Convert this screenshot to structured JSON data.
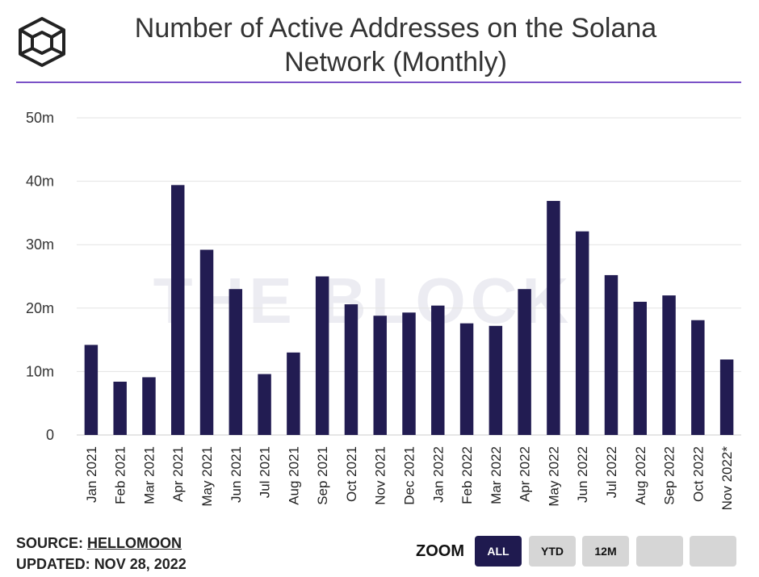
{
  "header": {
    "title_line1": "Number of Active Addresses on the Solana",
    "title_line2": "Network (Monthly)",
    "logo_icon": "the-block-cube-icon",
    "accent_color": "#7a52c7"
  },
  "chart_data": {
    "type": "bar",
    "title": "Number of Active Addresses on the Solana Network (Monthly)",
    "categories": [
      "Jan 2021",
      "Feb 2021",
      "Mar 2021",
      "Apr 2021",
      "May 2021",
      "Jun 2021",
      "Jul 2021",
      "Aug 2021",
      "Sep 2021",
      "Oct 2021",
      "Nov 2021",
      "Dec 2021",
      "Jan 2022",
      "Feb 2022",
      "Mar 2022",
      "Apr 2022",
      "May 2022",
      "Jun 2022",
      "Jul 2022",
      "Aug 2022",
      "Sep 2022",
      "Oct 2022",
      "Nov 2022*"
    ],
    "values": [
      14.2,
      8.4,
      9.1,
      39.4,
      29.2,
      23.0,
      9.6,
      13.0,
      25.0,
      20.6,
      18.8,
      19.3,
      20.4,
      17.6,
      17.2,
      23.0,
      36.9,
      32.1,
      25.2,
      21.0,
      22.0,
      18.1,
      11.9
    ],
    "unit": "m",
    "ylim": [
      0,
      50
    ],
    "yticks": [
      0,
      10,
      20,
      30,
      40,
      50
    ],
    "ytick_labels": [
      "0",
      "10m",
      "20m",
      "30m",
      "40m",
      "50m"
    ],
    "bar_color": "#221c52",
    "grid": true,
    "xlabel": "",
    "ylabel": ""
  },
  "watermark": "THE BLOCK",
  "footer": {
    "source_label": "SOURCE:",
    "source_name": "HELLOMOON",
    "updated_label": "UPDATED:",
    "updated_date": "NOV 28, 2022",
    "zoom_label": "ZOOM",
    "zoom_buttons": [
      "ALL",
      "YTD",
      "12M",
      "",
      ""
    ],
    "zoom_active": "ALL"
  }
}
